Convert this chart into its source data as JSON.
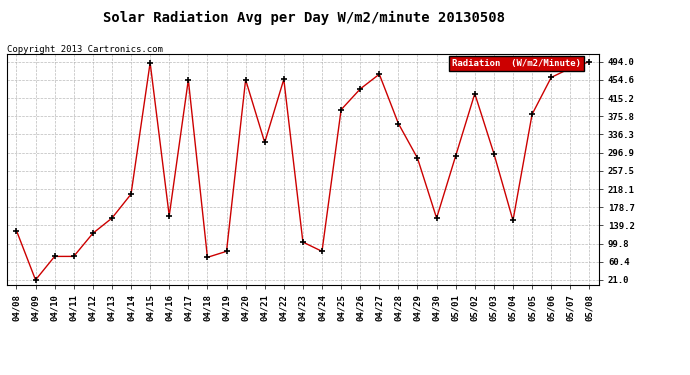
{
  "title": "Solar Radiation Avg per Day W/m2/minute 20130508",
  "copyright": "Copyright 2013 Cartronics.com",
  "legend_label": "Radiation  (W/m2/Minute)",
  "legend_bg": "#cc0000",
  "legend_fg": "#ffffff",
  "line_color": "#cc0000",
  "marker_color": "#000000",
  "bg_color": "#ffffff",
  "grid_color": "#aaaaaa",
  "dates": [
    "04/08",
    "04/09",
    "04/10",
    "04/11",
    "04/12",
    "04/13",
    "04/14",
    "04/15",
    "04/16",
    "04/17",
    "04/18",
    "04/19",
    "04/20",
    "04/21",
    "04/22",
    "04/23",
    "04/24",
    "04/25",
    "04/26",
    "04/27",
    "04/28",
    "04/29",
    "04/30",
    "05/01",
    "05/02",
    "05/03",
    "05/04",
    "05/05",
    "05/06",
    "05/07",
    "05/08"
  ],
  "values": [
    128,
    21,
    72,
    72,
    122,
    155,
    207,
    492,
    160,
    455,
    70,
    83,
    455,
    319,
    456,
    103,
    83,
    390,
    435,
    467,
    360,
    285,
    155,
    290,
    425,
    295,
    150,
    380,
    460,
    480,
    494
  ],
  "yticks": [
    21.0,
    60.4,
    99.8,
    139.2,
    178.7,
    218.1,
    257.5,
    296.9,
    336.3,
    375.8,
    415.2,
    454.6,
    494.0
  ],
  "ymin": 10,
  "ymax": 510,
  "title_fontsize": 10,
  "copyright_fontsize": 6.5,
  "tick_fontsize": 6.5,
  "legend_fontsize": 6.5
}
